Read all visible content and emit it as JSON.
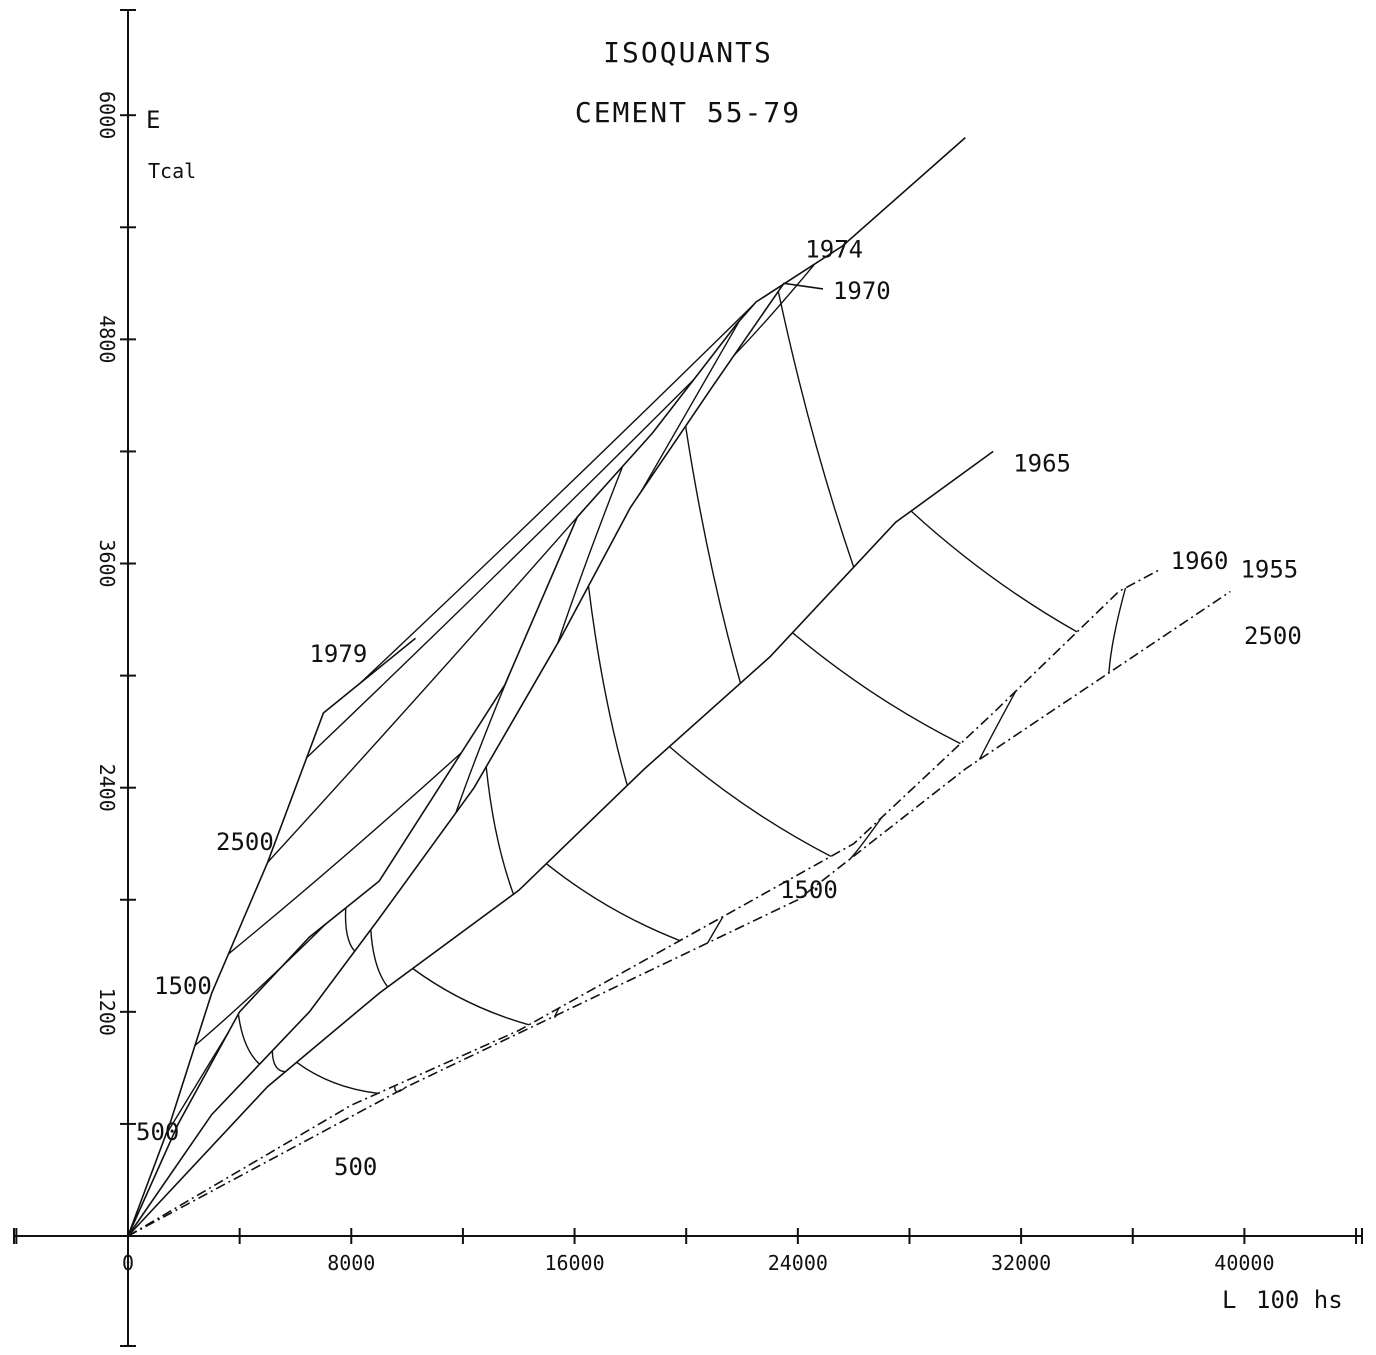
{
  "chart_data": {
    "type": "line",
    "title": "ISOQUANTS",
    "subtitle": "CEMENT 55-79",
    "ylabel": "E",
    "yunit": "Tcal",
    "xlabel": "L",
    "xunit": "100 hs",
    "xlim": [
      -6000,
      44000
    ],
    "ylim": [
      -1200,
      6600
    ],
    "x_ticks": [
      0,
      8000,
      16000,
      24000,
      32000,
      40000
    ],
    "x_tick_labels": [
      "0",
      "8000",
      "16000",
      "24000",
      "32000",
      "40000"
    ],
    "y_ticks": [
      1200,
      2400,
      3600,
      4800,
      6000
    ],
    "y_tick_labels": [
      "1200",
      "2400",
      "3600",
      "4800",
      "6000"
    ],
    "grid": false,
    "series": [
      {
        "name": "1979",
        "style": "solid",
        "points": [
          [
            0,
            0
          ],
          [
            1500,
            600
          ],
          [
            3000,
            1300
          ],
          [
            5000,
            2000
          ],
          [
            7000,
            2800
          ],
          [
            10300,
            3200
          ]
        ]
      },
      {
        "name": "1974",
        "style": "solid",
        "points": [
          [
            0,
            0
          ],
          [
            1800,
            600
          ],
          [
            4000,
            1200
          ],
          [
            6500,
            1600
          ],
          [
            9000,
            1900
          ],
          [
            13500,
            2950
          ],
          [
            16100,
            3850
          ],
          [
            18800,
            4300
          ],
          [
            21800,
            4880
          ],
          [
            22500,
            5000
          ],
          [
            25600,
            5300
          ],
          [
            30000,
            5880
          ]
        ]
      },
      {
        "name": "1970",
        "style": "solid",
        "points": [
          [
            0,
            0
          ],
          [
            3000,
            650
          ],
          [
            6500,
            1200
          ],
          [
            9000,
            1700
          ],
          [
            12400,
            2400
          ],
          [
            15500,
            3200
          ],
          [
            18000,
            3900
          ],
          [
            21000,
            4560
          ],
          [
            23500,
            5100
          ],
          [
            24900,
            5070
          ]
        ]
      },
      {
        "name": "1965",
        "style": "solid",
        "points": [
          [
            0,
            0
          ],
          [
            5000,
            800
          ],
          [
            9000,
            1300
          ],
          [
            14000,
            1850
          ],
          [
            18500,
            2500
          ],
          [
            23000,
            3100
          ],
          [
            27500,
            3820
          ],
          [
            31000,
            4200
          ]
        ]
      },
      {
        "name": "1960",
        "style": "dashdot",
        "points": [
          [
            0,
            0
          ],
          [
            8000,
            700
          ],
          [
            14000,
            1100
          ],
          [
            20000,
            1600
          ],
          [
            26000,
            2100
          ],
          [
            31000,
            2800
          ],
          [
            35500,
            3450
          ],
          [
            37000,
            3570
          ]
        ]
      },
      {
        "name": "1955",
        "style": "dashdot",
        "points": [
          [
            0,
            0
          ],
          [
            10000,
            800
          ],
          [
            17000,
            1300
          ],
          [
            24000,
            1800
          ],
          [
            30000,
            2500
          ],
          [
            36000,
            3100
          ],
          [
            39500,
            3450
          ]
        ]
      }
    ],
    "isoquants": [
      500,
      1500,
      2500
    ],
    "isoquant_labels": [
      {
        "text": "500"
      },
      {
        "text": "500"
      },
      {
        "text": "1500"
      },
      {
        "text": "1500"
      },
      {
        "text": "2500"
      },
      {
        "text": "2500"
      }
    ]
  }
}
